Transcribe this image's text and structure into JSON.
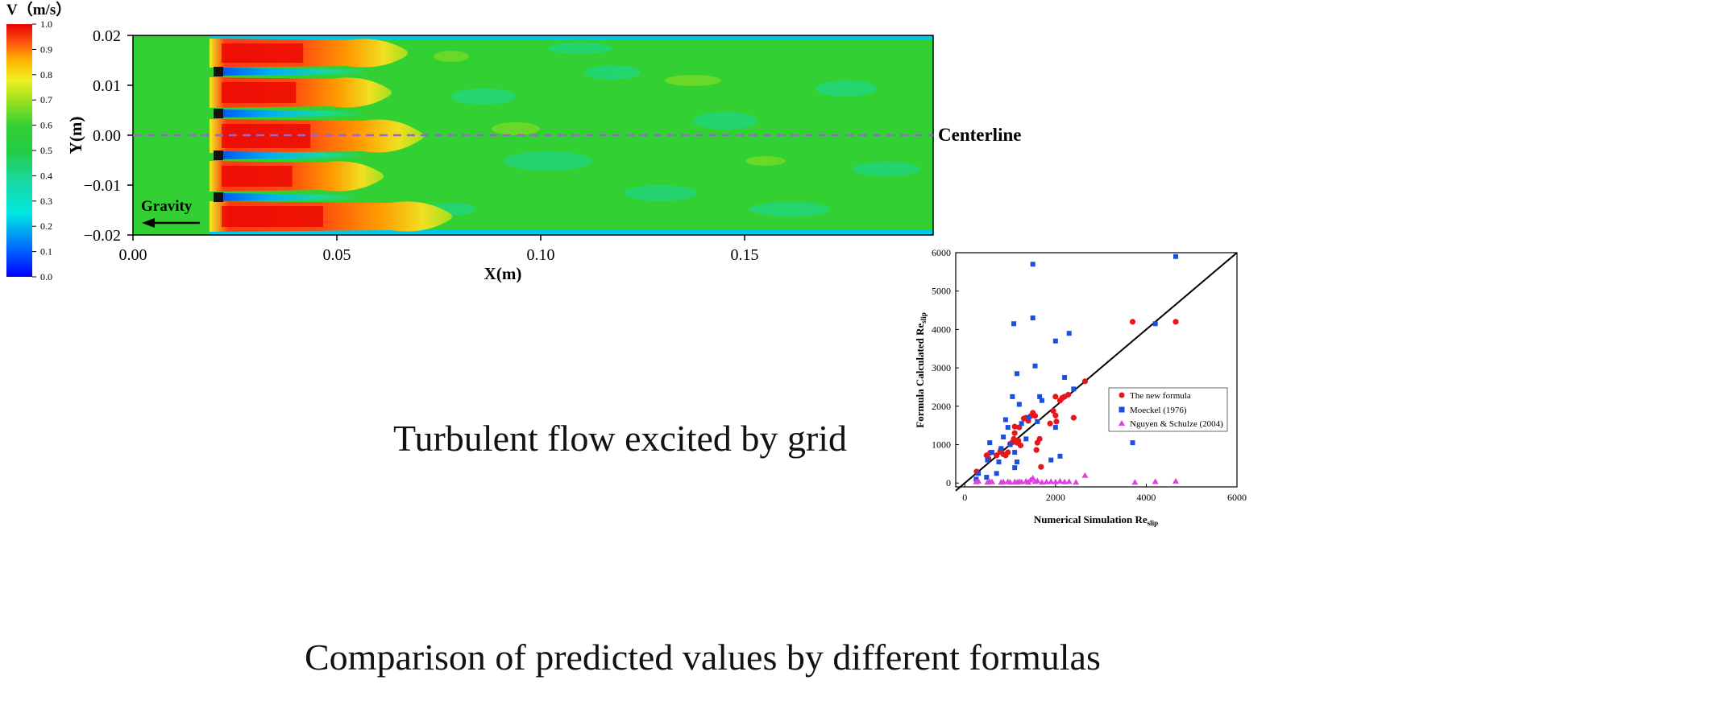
{
  "colorbar": {
    "title": "V（m/s）",
    "ticks": [
      "1.0",
      "0.9",
      "0.8",
      "0.7",
      "0.6",
      "0.5",
      "0.4",
      "0.3",
      "0.2",
      "0.1",
      "0.0"
    ],
    "colors": [
      "#0000ff",
      "#00a0ff",
      "#00e8e0",
      "#19d8a0",
      "#22cc44",
      "#33d033",
      "#a0e020",
      "#f0f020",
      "#ffb000",
      "#ff5010",
      "#e80000"
    ]
  },
  "contour": {
    "xlabel": "X(m)",
    "ylabel": "Y(m)",
    "xticks": [
      "0.00",
      "0.05",
      "0.10",
      "0.15"
    ],
    "yticks": [
      "0.02",
      "0.01",
      "0.00",
      "−0.01",
      "−0.02"
    ],
    "centerline_label": "Centerline",
    "gravity_label": "Gravity",
    "background_color": "#33d033",
    "centerline_color": "#9966cc"
  },
  "captions": {
    "contour": "Turbulent flow excited by grid",
    "scatter": "Comparison of predicted values by different formulas"
  },
  "chart_data": {
    "type": "scatter",
    "xlabel": "Numerical Simulation Re",
    "xlabel_sub": "slip",
    "ylabel": "Formula Calculated Re",
    "ylabel_sub": "slip",
    "xlim": [
      -200,
      6000
    ],
    "ylim": [
      -100,
      6000
    ],
    "xticks": [
      "0",
      "2000",
      "4000",
      "6000"
    ],
    "yticks": [
      "0",
      "1000",
      "2000",
      "3000",
      "4000",
      "5000",
      "6000"
    ],
    "legend_position": "center-right",
    "reference_line": [
      [
        -200,
        -200
      ],
      [
        6000,
        6000
      ]
    ],
    "series": [
      {
        "name": "The new formula",
        "marker": "circle",
        "color": "#e8161b",
        "points": [
          [
            260,
            300
          ],
          [
            480,
            720
          ],
          [
            520,
            640
          ],
          [
            560,
            790
          ],
          [
            700,
            720
          ],
          [
            780,
            820
          ],
          [
            800,
            880
          ],
          [
            850,
            750
          ],
          [
            900,
            720
          ],
          [
            950,
            800
          ],
          [
            1000,
            1020
          ],
          [
            1040,
            1050
          ],
          [
            1080,
            1150
          ],
          [
            1100,
            1300
          ],
          [
            1100,
            1470
          ],
          [
            1150,
            1050
          ],
          [
            1180,
            1100
          ],
          [
            1200,
            1450
          ],
          [
            1230,
            980
          ],
          [
            1300,
            1680
          ],
          [
            1350,
            1700
          ],
          [
            1400,
            1620
          ],
          [
            1450,
            1740
          ],
          [
            1500,
            1830
          ],
          [
            1550,
            1750
          ],
          [
            1580,
            860
          ],
          [
            1600,
            1050
          ],
          [
            1650,
            1150
          ],
          [
            1680,
            420
          ],
          [
            1880,
            1550
          ],
          [
            1950,
            1880
          ],
          [
            2000,
            1760
          ],
          [
            2000,
            2250
          ],
          [
            2020,
            1600
          ],
          [
            2100,
            2150
          ],
          [
            2150,
            2220
          ],
          [
            2200,
            2250
          ],
          [
            2280,
            2300
          ],
          [
            2400,
            1700
          ],
          [
            2650,
            2650
          ],
          [
            3700,
            4200
          ],
          [
            4650,
            4200
          ]
        ]
      },
      {
        "name": "Moeckel (1976)",
        "marker": "square",
        "color": "#1a4fe0",
        "points": [
          [
            250,
            100
          ],
          [
            300,
            250
          ],
          [
            480,
            150
          ],
          [
            500,
            600
          ],
          [
            550,
            1050
          ],
          [
            600,
            800
          ],
          [
            700,
            250
          ],
          [
            750,
            550
          ],
          [
            800,
            900
          ],
          [
            850,
            1200
          ],
          [
            900,
            1650
          ],
          [
            950,
            1450
          ],
          [
            1000,
            1000
          ],
          [
            1050,
            2250
          ],
          [
            1080,
            4150
          ],
          [
            1100,
            400
          ],
          [
            1100,
            800
          ],
          [
            1150,
            550
          ],
          [
            1150,
            2850
          ],
          [
            1200,
            2050
          ],
          [
            1250,
            1550
          ],
          [
            1350,
            1150
          ],
          [
            1400,
            1700
          ],
          [
            1500,
            5700
          ],
          [
            1500,
            4300
          ],
          [
            1550,
            3050
          ],
          [
            1600,
            1600
          ],
          [
            1650,
            2250
          ],
          [
            1700,
            2150
          ],
          [
            1900,
            600
          ],
          [
            2000,
            3700
          ],
          [
            2000,
            1450
          ],
          [
            2100,
            700
          ],
          [
            2200,
            2750
          ],
          [
            2300,
            3900
          ],
          [
            2400,
            2450
          ],
          [
            3700,
            1050
          ],
          [
            4200,
            4150
          ],
          [
            4650,
            5900
          ]
        ]
      },
      {
        "name": "Nguyen & Schulze (2004)",
        "marker": "triangle",
        "color": "#e040e0",
        "points": [
          [
            250,
            30
          ],
          [
            300,
            50
          ],
          [
            500,
            20
          ],
          [
            550,
            40
          ],
          [
            600,
            30
          ],
          [
            800,
            20
          ],
          [
            850,
            30
          ],
          [
            950,
            40
          ],
          [
            1000,
            20
          ],
          [
            1100,
            30
          ],
          [
            1150,
            20
          ],
          [
            1200,
            40
          ],
          [
            1250,
            30
          ],
          [
            1350,
            50
          ],
          [
            1400,
            20
          ],
          [
            1450,
            80
          ],
          [
            1500,
            130
          ],
          [
            1550,
            40
          ],
          [
            1600,
            60
          ],
          [
            1700,
            20
          ],
          [
            1800,
            30
          ],
          [
            1900,
            40
          ],
          [
            2000,
            30
          ],
          [
            2100,
            50
          ],
          [
            2200,
            30
          ],
          [
            2300,
            40
          ],
          [
            2450,
            20
          ],
          [
            2650,
            200
          ],
          [
            3750,
            20
          ],
          [
            4200,
            40
          ],
          [
            4650,
            50
          ]
        ]
      }
    ]
  }
}
